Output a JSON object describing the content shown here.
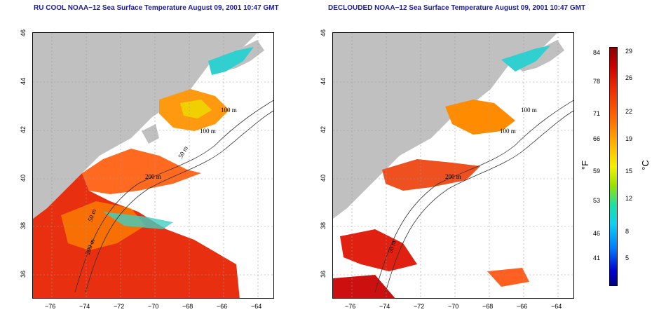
{
  "titles": {
    "left": "RU COOL NOAA−12 Sea Surface Temperature August 09, 2001 10:47 GMT",
    "right": "DECLOUDED NOAA−12 Sea Surface Temperature August 09, 2001 10:47 GMT"
  },
  "map": {
    "x_ticks": [
      "−76",
      "−74",
      "−72",
      "−70",
      "−68",
      "−66",
      "−64"
    ],
    "y_ticks": [
      "46",
      "44",
      "42",
      "40",
      "38",
      "36"
    ],
    "contour_labels": [
      "100 m",
      "100 m",
      "50 m",
      "200 m",
      "50 m",
      "200 m",
      "50 m"
    ]
  },
  "colorbar": {
    "fahrenheit": [
      "84",
      "78",
      "71",
      "66",
      "59",
      "53",
      "46",
      "41"
    ],
    "celsius": [
      "29",
      "26",
      "22",
      "19",
      "15",
      "12",
      "8",
      "5"
    ],
    "unit_f": "°F",
    "unit_c": "°C"
  },
  "colors": {
    "land": "#c0c0c0",
    "title": "#1a1aa6",
    "hot": "#e83010",
    "warm": "#ff8c00",
    "mild": "#f0d000",
    "cool": "#30d0d0"
  }
}
